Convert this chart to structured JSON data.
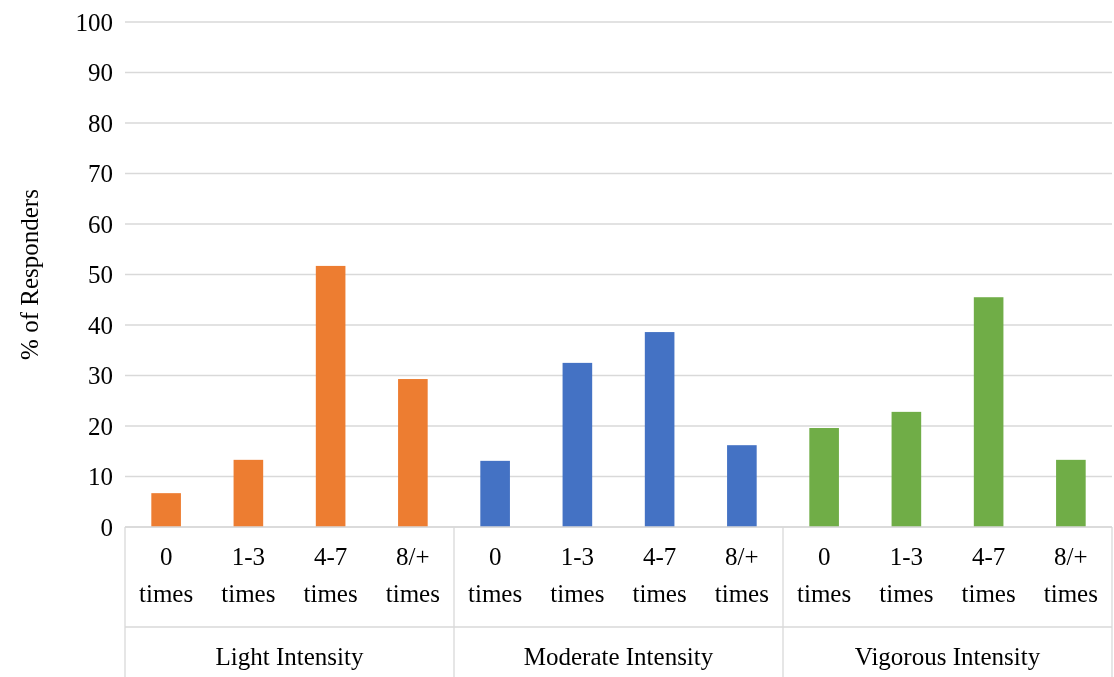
{
  "chart_data": {
    "type": "bar",
    "ylabel": "% of Responders",
    "categories": [
      "0 times",
      "1-3 times",
      "4-7 times",
      "8/+ times",
      "0 times",
      "1-3 times",
      "4-7 times",
      "8/+ times",
      "0 times",
      "1-3 times",
      "4-7 times",
      "8/+ times"
    ],
    "values": [
      6.7,
      13.3,
      51.7,
      29.3,
      13.1,
      32.5,
      38.6,
      16.2,
      19.6,
      22.8,
      45.5,
      13.3
    ],
    "colors": [
      "#ed7d31",
      "#ed7d31",
      "#ed7d31",
      "#ed7d31",
      "#4472c4",
      "#4472c4",
      "#4472c4",
      "#4472c4",
      "#70ad47",
      "#70ad47",
      "#70ad47",
      "#70ad47"
    ],
    "annotations": [
      "Light Intensity",
      "Moderate Intensity",
      "Vigorous Intensity"
    ],
    "ylim": [
      0,
      100
    ],
    "yticks": [
      0,
      10,
      20,
      30,
      40,
      50,
      60,
      70,
      80,
      90,
      100
    ],
    "grid": "y"
  }
}
